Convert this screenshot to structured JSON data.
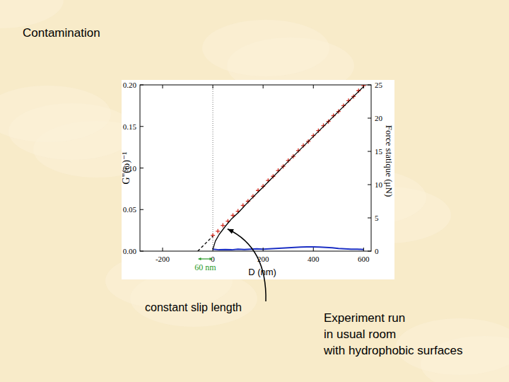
{
  "slide": {
    "title": "Contamination",
    "notes": [
      "Experiment run",
      "in usual room",
      "with hydrophobic surfaces"
    ]
  },
  "chart_data": {
    "type": "scatter",
    "x_label": "D (nm)",
    "y_label": "G\"(ω)⁻¹",
    "y2_label": "Force statique  (μN)",
    "xlim": [
      -290,
      630
    ],
    "xticks": [
      -200,
      0,
      200,
      400,
      600
    ],
    "ylim": [
      0,
      0.2
    ],
    "yticks": [
      {
        "value": 0,
        "label": "0.00"
      },
      {
        "value": 0.05,
        "label": "0.05"
      },
      {
        "value": 0.1,
        "label": "0.10"
      },
      {
        "value": 0.15,
        "label": "0.15"
      },
      {
        "value": 0.2,
        "label": "0.20"
      }
    ],
    "y2lim": [
      0,
      25
    ],
    "y2ticks": [
      0,
      5,
      10,
      15,
      20,
      25
    ],
    "grid": false,
    "vlines": [
      0
    ],
    "series": [
      {
        "type": "scatter",
        "color": "#d42a1e",
        "marker": "plus",
        "x": [
          0,
          20,
          40,
          60,
          80,
          100,
          120,
          140,
          160,
          180,
          200,
          220,
          240,
          260,
          280,
          300,
          320,
          340,
          360,
          380,
          400,
          420,
          440,
          460,
          480,
          500,
          520,
          540,
          560,
          580,
          600
        ],
        "values": [
          0.019,
          0.024,
          0.031,
          0.036,
          0.043,
          0.048,
          0.055,
          0.06,
          0.066,
          0.073,
          0.078,
          0.085,
          0.09,
          0.097,
          0.102,
          0.109,
          0.114,
          0.121,
          0.127,
          0.132,
          0.139,
          0.145,
          0.151,
          0.156,
          0.163,
          0.168,
          0.175,
          0.181,
          0.186,
          0.193,
          0.199
        ]
      },
      {
        "type": "line",
        "color": "#000000",
        "line_style": "solid",
        "x": [
          0,
          10,
          25,
          50,
          75,
          100,
          150,
          200,
          300,
          400,
          500,
          600
        ],
        "values": [
          0.002,
          0.012,
          0.02,
          0.03,
          0.039,
          0.046,
          0.062,
          0.077,
          0.108,
          0.138,
          0.168,
          0.198
        ]
      },
      {
        "type": "line",
        "color": "#000000",
        "line_style": "dashed",
        "x": [
          -60,
          0
        ],
        "values": [
          0,
          0.018
        ]
      },
      {
        "type": "line",
        "color": "#1b2fc4",
        "line_style": "solid",
        "axis": "y2",
        "x": [
          0,
          25,
          50,
          75,
          100,
          125,
          150,
          175,
          200,
          225,
          250,
          275,
          300,
          325,
          350,
          375,
          400,
          425,
          450,
          475,
          500,
          525,
          550,
          575,
          600
        ],
        "values": [
          0.3,
          0.2,
          0.25,
          0.2,
          0.3,
          0.25,
          0.3,
          0.35,
          0.3,
          0.35,
          0.4,
          0.45,
          0.5,
          0.55,
          0.6,
          0.65,
          0.65,
          0.6,
          0.55,
          0.5,
          0.4,
          0.35,
          0.3,
          0.3,
          0.25
        ]
      }
    ],
    "annotations": [
      {
        "text": "60 nm",
        "x": [
          -60,
          0
        ],
        "color": "#2a9a2a"
      },
      {
        "text": "constant slip length"
      }
    ]
  }
}
